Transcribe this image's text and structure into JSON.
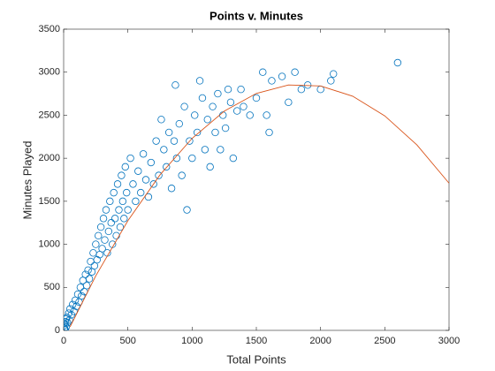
{
  "chart_data": {
    "type": "scatter",
    "title": "Points v. Minutes",
    "xlabel": "Total Points",
    "ylabel": "Minutes Played",
    "xlim": [
      0,
      3000
    ],
    "ylim": [
      0,
      3500
    ],
    "xticks": [
      0,
      500,
      1000,
      1500,
      2000,
      2500,
      3000
    ],
    "yticks": [
      0,
      500,
      1000,
      1500,
      2000,
      2500,
      3000,
      3500
    ],
    "grid": false,
    "color": "#0072BD",
    "x": [
      3,
      8,
      12,
      18,
      5,
      10,
      15,
      20,
      25,
      30,
      40,
      45,
      50,
      60,
      70,
      80,
      90,
      100,
      110,
      120,
      130,
      140,
      150,
      160,
      170,
      180,
      190,
      200,
      210,
      220,
      230,
      240,
      250,
      260,
      270,
      280,
      290,
      300,
      310,
      320,
      330,
      340,
      350,
      360,
      370,
      380,
      390,
      400,
      410,
      420,
      430,
      440,
      450,
      460,
      470,
      480,
      490,
      500,
      520,
      540,
      560,
      580,
      600,
      620,
      640,
      660,
      680,
      700,
      720,
      740,
      760,
      780,
      800,
      820,
      840,
      860,
      870,
      880,
      900,
      920,
      940,
      960,
      980,
      1000,
      1020,
      1040,
      1060,
      1080,
      1100,
      1120,
      1140,
      1160,
      1180,
      1200,
      1220,
      1240,
      1260,
      1280,
      1300,
      1320,
      1350,
      1380,
      1400,
      1450,
      1500,
      1550,
      1580,
      1600,
      1620,
      1700,
      1750,
      1800,
      1850,
      1900,
      2000,
      2080,
      2100,
      2600
    ],
    "y": [
      80,
      10,
      5,
      130,
      20,
      60,
      100,
      40,
      150,
      90,
      200,
      120,
      250,
      180,
      300,
      220,
      350,
      280,
      420,
      330,
      500,
      400,
      580,
      450,
      650,
      520,
      700,
      600,
      800,
      680,
      900,
      750,
      1000,
      820,
      1100,
      880,
      1200,
      950,
      1300,
      1050,
      1400,
      900,
      1150,
      1500,
      1250,
      1000,
      1600,
      1300,
      1100,
      1700,
      1400,
      1200,
      1800,
      1500,
      1300,
      1900,
      1600,
      1400,
      2000,
      1700,
      1500,
      1850,
      1600,
      2050,
      1750,
      1550,
      1950,
      1700,
      2200,
      1800,
      2450,
      2100,
      1900,
      2300,
      1650,
      2200,
      2850,
      2000,
      2400,
      1800,
      2600,
      1400,
      2200,
      2000,
      2500,
      2300,
      2900,
      2700,
      2100,
      2450,
      1900,
      2600,
      2300,
      2750,
      2100,
      2500,
      2350,
      2800,
      2650,
      2000,
      2550,
      2800,
      2600,
      2500,
      2700,
      3000,
      2500,
      2300,
      2900,
      2950,
      2650,
      3000,
      2800,
      2850,
      2800,
      2900,
      2980,
      3110
    ],
    "fit": {
      "color": "#D95319",
      "x": [
        50,
        250,
        500,
        750,
        1000,
        1250,
        1500,
        1750,
        2000,
        2250,
        2500,
        2750,
        3000
      ],
      "y": [
        41,
        633,
        1274,
        1807,
        2231,
        2547,
        2753,
        2851,
        2840,
        2721,
        2492,
        2155,
        1710
      ]
    }
  }
}
